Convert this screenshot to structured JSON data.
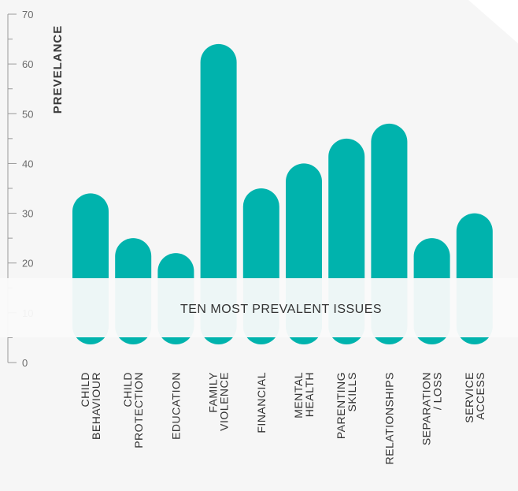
{
  "chart_data": {
    "type": "bar",
    "title": "",
    "banner": "TEN MOST PREVALENT ISSUES",
    "ylabel": "PREVELANCE",
    "xlabel": "",
    "ylim": [
      0,
      70
    ],
    "yticks": [
      0,
      10,
      20,
      30,
      40,
      50,
      60,
      70
    ],
    "grid": false,
    "legend": "none",
    "bar_color": "#00b3ad",
    "categories": [
      [
        "CHILD",
        "BEHAVIOUR"
      ],
      [
        "CHILD",
        "PROTECTION"
      ],
      [
        "EDUCATION"
      ],
      [
        "FAMILY",
        "VIOLENCE"
      ],
      [
        "FINANCIAL"
      ],
      [
        "MENTAL",
        "HEALTH"
      ],
      [
        "PARENTING",
        "SKILLS"
      ],
      [
        "RELATIONSHIPS"
      ],
      [
        "SEPARATION",
        "/ LOSS"
      ],
      [
        "SERVICE",
        "ACCESS"
      ]
    ],
    "values": [
      34,
      25,
      22,
      64,
      35,
      40,
      45,
      48,
      25,
      30
    ]
  }
}
